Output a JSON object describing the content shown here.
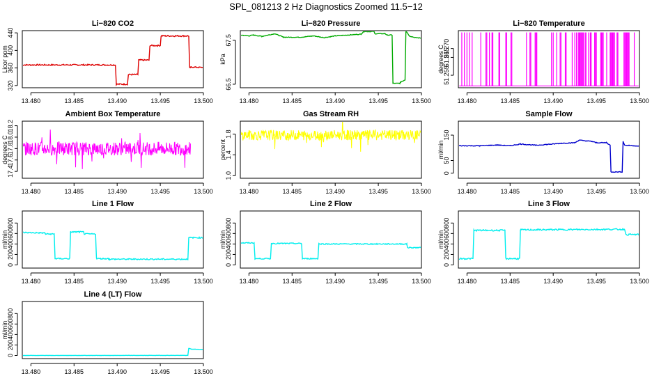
{
  "page": {
    "title": "SPL_081213  2 Hz Diagnostics Zoomed 11.5−12"
  },
  "chart_data": [
    {
      "type": "line",
      "title": "Li−820 CO2",
      "ylabel": "Licor ppm",
      "xlim": [
        13.479,
        13.5
      ],
      "ylim": [
        315,
        445
      ],
      "xticks": [
        "13.480",
        "13.485",
        "13.490",
        "13.495",
        "13.500"
      ],
      "yticks": [
        "320",
        "360",
        "400",
        "440"
      ],
      "ytick_values": [
        320,
        360,
        400,
        440
      ],
      "color": "#dd0000",
      "noise": 1.5,
      "series": [
        {
          "x": [
            13.479,
            13.4898,
            13.4899,
            13.4912,
            13.4913,
            13.4924,
            13.4925,
            13.4937,
            13.4938,
            13.495,
            13.4951,
            13.4983,
            13.4984,
            13.4986,
            13.5
          ],
          "y": [
            367,
            367,
            323,
            323,
            345,
            345,
            378,
            378,
            411,
            411,
            433,
            433,
            360,
            362,
            361
          ]
        }
      ]
    },
    {
      "type": "line",
      "title": "Li−820 Pressure",
      "ylabel": "kPa",
      "xlim": [
        13.479,
        13.5
      ],
      "ylim": [
        66.42,
        67.72
      ],
      "xticks": [
        "13.480",
        "13.485",
        "13.490",
        "13.495",
        "13.500"
      ],
      "yticks": [
        "66.5",
        "67.5"
      ],
      "ytick_values": [
        66.5,
        67.5
      ],
      "color": "#00aa00",
      "noise": 0.008,
      "series": [
        {
          "x": [
            13.479,
            13.48,
            13.4805,
            13.4815,
            13.483,
            13.484,
            13.486,
            13.4875,
            13.4887,
            13.49,
            13.4915,
            13.493,
            13.4933,
            13.4945,
            13.4946,
            13.4958,
            13.496,
            13.4966,
            13.4967,
            13.4975,
            13.4976,
            13.4981,
            13.4982,
            13.4986,
            13.4993,
            13.5
          ],
          "y": [
            67.62,
            67.6,
            67.62,
            67.59,
            67.65,
            67.57,
            67.57,
            67.6,
            67.56,
            67.6,
            67.62,
            67.64,
            67.7,
            67.7,
            67.65,
            67.65,
            67.62,
            67.62,
            66.52,
            66.52,
            66.55,
            66.6,
            67.72,
            67.6,
            67.56,
            67.55
          ]
        }
      ]
    },
    {
      "type": "line",
      "title": "Li−820 Temperature",
      "ylabel": "degrees C",
      "xlim": [
        13.479,
        13.5
      ],
      "ylim": [
        51.248,
        51.28
      ],
      "xticks": [
        "13.480",
        "13.485",
        "13.490",
        "13.495",
        "13.500"
      ],
      "yticks": [
        "51.255",
        "51.265",
        "51.270"
      ],
      "ytick_values": [
        51.255,
        51.265,
        51.27
      ],
      "color": "#ff00ff",
      "noise": 0,
      "baseline": 51.249,
      "spike_to": 51.279,
      "spikes": [
        13.4794,
        13.4797,
        13.48,
        13.4803,
        13.4806,
        13.4816,
        13.4822,
        13.4823,
        13.4826,
        13.4829,
        13.483,
        13.4837,
        13.4838,
        13.4845,
        13.4846,
        13.4851,
        13.4852,
        13.4869,
        13.4873,
        13.4874,
        13.4879,
        13.488,
        13.4881,
        13.4898,
        13.49,
        13.4904,
        13.4908,
        13.4909,
        13.4914,
        13.4915,
        13.4922,
        13.4925,
        13.4927,
        13.4929,
        13.493,
        13.4931,
        13.4932,
        13.4933,
        13.4934,
        13.4935,
        13.4937,
        13.4938,
        13.4941,
        13.4943,
        13.4944,
        13.4948,
        13.4949,
        13.495,
        13.4955,
        13.4956,
        13.4957,
        13.4958,
        13.4962,
        13.4966,
        13.4967,
        13.4968,
        13.4969,
        13.497,
        13.4971,
        13.4974,
        13.4975,
        13.4982,
        13.4983,
        13.4984,
        13.4985,
        13.4986,
        13.4987,
        13.4988,
        13.4994
      ]
    },
    {
      "type": "line",
      "title": "Ambient Box Temperature",
      "ylabel": "degrees C",
      "xlim": [
        13.479,
        13.5
      ],
      "ylim": [
        17.28,
        18.28
      ],
      "xticks": [
        "13.480",
        "13.485",
        "13.490",
        "13.495",
        "13.500"
      ],
      "yticks": [
        "17.4",
        "17.6",
        "17.8",
        "18.0",
        "18.2"
      ],
      "ytick_values": [
        17.4,
        17.6,
        17.8,
        18.0,
        18.2
      ],
      "color": "#ff00ff",
      "noise": 0.12,
      "band": true,
      "series": [
        {
          "x": [
            13.479,
            13.4985
          ],
          "y": [
            17.8,
            17.8
          ]
        }
      ]
    },
    {
      "type": "line",
      "title": "Gas Stream RH",
      "ylabel": "percent",
      "xlim": [
        13.479,
        13.5
      ],
      "ylim": [
        0.95,
        2.05
      ],
      "xticks": [
        "13.480",
        "13.485",
        "13.490",
        "13.495",
        "13.500"
      ],
      "yticks": [
        "1.0",
        "1.4",
        "1.8"
      ],
      "ytick_values": [
        1.0,
        1.4,
        1.8
      ],
      "color": "#ffff00",
      "noise": 0.1,
      "band": true,
      "series": [
        {
          "x": [
            13.479,
            13.5
          ],
          "y": [
            1.78,
            1.78
          ]
        }
      ]
    },
    {
      "type": "line",
      "title": "Sample Flow",
      "ylabel": "ml/min",
      "xlim": [
        13.479,
        13.5
      ],
      "ylim": [
        -20,
        205
      ],
      "xticks": [
        "13.480",
        "13.485",
        "13.490",
        "13.495",
        "13.500"
      ],
      "yticks": [
        "0",
        "50",
        "150"
      ],
      "ytick_values": [
        0,
        50,
        150
      ],
      "color": "#0000cc",
      "noise": 1.5,
      "series": [
        {
          "x": [
            13.479,
            13.4815,
            13.4835,
            13.485,
            13.4862,
            13.488,
            13.49,
            13.491,
            13.4925,
            13.493,
            13.4945,
            13.495,
            13.4962,
            13.4966,
            13.4967,
            13.498,
            13.4981,
            13.4983,
            13.4995,
            13.5
          ],
          "y": [
            108,
            108,
            111,
            108,
            115,
            110,
            115,
            118,
            120,
            130,
            125,
            120,
            120,
            110,
            5,
            5,
            125,
            110,
            108,
            105
          ]
        }
      ]
    },
    {
      "type": "line",
      "title": "Line 1 Flow",
      "ylabel": "ml/min",
      "xlim": [
        13.479,
        13.5
      ],
      "ylim": [
        -60,
        1030
      ],
      "xticks": [
        "13.480",
        "13.485",
        "13.490",
        "13.495",
        "13.500"
      ],
      "yticks": [
        "0",
        "200",
        "400",
        "600",
        "800"
      ],
      "ytick_values": [
        0,
        200,
        400,
        600,
        800
      ],
      "color": "#00eeee",
      "noise": 12,
      "series": [
        {
          "x": [
            13.479,
            13.4816,
            13.4817,
            13.4827,
            13.4828,
            13.4845,
            13.4846,
            13.4861,
            13.4862,
            13.4875,
            13.4876,
            13.489,
            13.4891,
            13.4982,
            13.4983,
            13.5
          ],
          "y": [
            620,
            610,
            590,
            590,
            120,
            120,
            630,
            630,
            590,
            590,
            120,
            120,
            110,
            110,
            520,
            520
          ]
        }
      ]
    },
    {
      "type": "line",
      "title": "Line 2 Flow",
      "ylabel": "ml/min",
      "xlim": [
        13.479,
        13.5
      ],
      "ylim": [
        -60,
        1030
      ],
      "xticks": [
        "13.480",
        "13.485",
        "13.490",
        "13.495",
        "13.500"
      ],
      "yticks": [
        "0",
        "200",
        "400",
        "600",
        "800"
      ],
      "ytick_values": [
        0,
        200,
        400,
        600,
        800
      ],
      "color": "#00eeee",
      "noise": 10,
      "series": [
        {
          "x": [
            13.479,
            13.4806,
            13.4807,
            13.4825,
            13.4826,
            13.4861,
            13.4862,
            13.488,
            13.4881,
            13.4983,
            13.4984,
            13.5
          ],
          "y": [
            420,
            420,
            120,
            120,
            410,
            410,
            120,
            120,
            400,
            400,
            330,
            330
          ]
        }
      ]
    },
    {
      "type": "line",
      "title": "Line 3 Flow",
      "ylabel": "ml/min",
      "xlim": [
        13.479,
        13.5
      ],
      "ylim": [
        -60,
        1030
      ],
      "xticks": [
        "13.480",
        "13.485",
        "13.490",
        "13.495",
        "13.500"
      ],
      "yticks": [
        "0",
        "200",
        "400",
        "600",
        "800"
      ],
      "ytick_values": [
        0,
        200,
        400,
        600,
        800
      ],
      "color": "#00eeee",
      "noise": 14,
      "series": [
        {
          "x": [
            13.479,
            13.4807,
            13.4808,
            13.4844,
            13.4845,
            13.4861,
            13.4862,
            13.4983,
            13.4984,
            13.5
          ],
          "y": [
            120,
            120,
            660,
            660,
            120,
            120,
            670,
            680,
            580,
            580
          ]
        }
      ]
    },
    {
      "type": "line",
      "title": "Line 4 (LT) Flow",
      "ylabel": "ml/min",
      "xlim": [
        13.479,
        13.5
      ],
      "ylim": [
        -60,
        1030
      ],
      "xticks": [
        "13.480",
        "13.485",
        "13.490",
        "13.495",
        "13.500"
      ],
      "yticks": [
        "0",
        "200",
        "400",
        "600",
        "800"
      ],
      "ytick_values": [
        0,
        200,
        400,
        600,
        800
      ],
      "color": "#00eeee",
      "noise": 2,
      "series": [
        {
          "x": [
            13.479,
            13.4982,
            13.4983,
            13.4986,
            13.5
          ],
          "y": [
            0,
            2,
            140,
            120,
            115
          ]
        }
      ]
    }
  ]
}
